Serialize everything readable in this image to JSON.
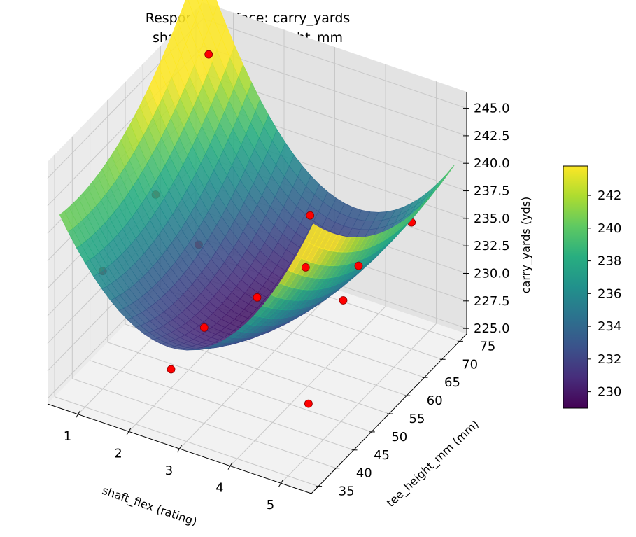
{
  "chart_data": {
    "type": "surface3d",
    "title": "Response Surface: carry_yards",
    "subtitle": "shaft_flex vs tee_height_mm",
    "xlabel": "shaft_flex (rating)",
    "ylabel": "tee_height_mm (mm)",
    "zlabel": "carry_yards (yds)",
    "x_ticks": [
      "1",
      "2",
      "3",
      "4",
      "5"
    ],
    "y_ticks": [
      "35",
      "40",
      "45",
      "50",
      "55",
      "60",
      "65",
      "70",
      "75"
    ],
    "z_ticks": [
      "225.0",
      "227.5",
      "230.0",
      "232.5",
      "235.0",
      "237.5",
      "240.0",
      "242.5",
      "245.0"
    ],
    "xlim": [
      0.4,
      5.6
    ],
    "ylim": [
      33,
      77
    ],
    "zlim": [
      224.5,
      246.5
    ],
    "colorbar": {
      "colormap": "viridis",
      "range": [
        229.0,
        243.8
      ],
      "ticks": [
        "230",
        "232",
        "234",
        "236",
        "238",
        "240",
        "242"
      ]
    },
    "surface_model": "z = 230 - 0.4*(x-3) + 0.03*(y-55) + 1.9*(x-3)^2 + 0.0085*(y-55)^2 - 0.09*(x-3)*(y-55)",
    "surface_grid": {
      "x_range": [
        0.5,
        5.5
      ],
      "y_range": [
        35,
        75
      ],
      "steps": 30
    },
    "points": [
      {
        "x": 1,
        "y": 40,
        "z": 235.2
      },
      {
        "x": 1,
        "y": 55,
        "z": 237.2
      },
      {
        "x": 1,
        "y": 70,
        "z": 245.0
      },
      {
        "x": 3,
        "y": 40,
        "z": 233.2
      },
      {
        "x": 3,
        "y": 55,
        "z": 231.0
      },
      {
        "x": 3,
        "y": 70,
        "z": 233.5
      },
      {
        "x": 5,
        "y": 40,
        "z": 241.8
      },
      {
        "x": 5,
        "y": 55,
        "z": 237.0
      },
      {
        "x": 5,
        "y": 70,
        "z": 236.0
      },
      {
        "x": 2,
        "y": 45,
        "z": 226.2
      },
      {
        "x": 4,
        "y": 65,
        "z": 229.0
      },
      {
        "x": 1.5,
        "y": 60,
        "z": 231.8
      },
      {
        "x": 4.5,
        "y": 48,
        "z": 226.0
      }
    ],
    "point_color": "#ff0000",
    "grid": true
  }
}
